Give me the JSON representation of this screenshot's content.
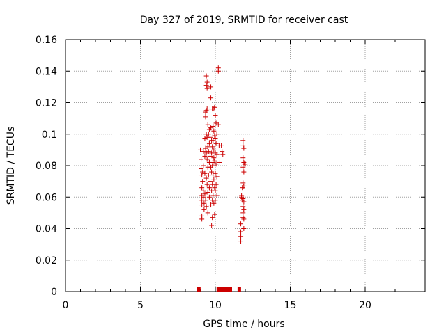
{
  "chart_data": {
    "type": "scatter",
    "title": "Day 327 of 2019, SRMTID for receiver cast",
    "xlabel": "GPS time / hours",
    "ylabel": "SRMTID / TECUs",
    "xlim": [
      0,
      24
    ],
    "ylim": [
      0,
      0.16
    ],
    "xticks": [
      "0",
      "5",
      "10",
      "15",
      "20"
    ],
    "yticks": [
      "0",
      "0.02",
      "0.04",
      "0.06",
      "0.08",
      "0.1",
      "0.12",
      "0.14",
      "0.16"
    ],
    "grid": true,
    "marker_color": "#cc0000",
    "series": [
      {
        "marker": "plus",
        "points": [
          [
            9.0,
            0.09
          ],
          [
            9.05,
            0.084
          ],
          [
            9.05,
            0.078
          ],
          [
            9.1,
            0.074
          ],
          [
            9.1,
            0.066
          ],
          [
            9.1,
            0.061
          ],
          [
            9.1,
            0.058
          ],
          [
            9.1,
            0.055
          ],
          [
            9.1,
            0.048
          ],
          [
            9.1,
            0.046
          ],
          [
            9.15,
            0.076
          ],
          [
            9.15,
            0.07
          ],
          [
            9.2,
            0.089
          ],
          [
            9.2,
            0.08
          ],
          [
            9.2,
            0.064
          ],
          [
            9.2,
            0.06
          ],
          [
            9.25,
            0.056
          ],
          [
            9.25,
            0.052
          ],
          [
            9.3,
            0.097
          ],
          [
            9.3,
            0.086
          ],
          [
            9.3,
            0.075
          ],
          [
            9.3,
            0.062
          ],
          [
            9.35,
            0.114
          ],
          [
            9.35,
            0.111
          ],
          [
            9.35,
            0.091
          ],
          [
            9.35,
            0.058
          ],
          [
            9.4,
            0.137
          ],
          [
            9.4,
            0.131
          ],
          [
            9.4,
            0.115
          ],
          [
            9.4,
            0.1
          ],
          [
            9.4,
            0.088
          ],
          [
            9.4,
            0.072
          ],
          [
            9.4,
            0.054
          ],
          [
            9.45,
            0.133
          ],
          [
            9.45,
            0.129
          ],
          [
            9.45,
            0.116
          ],
          [
            9.45,
            0.098
          ],
          [
            9.45,
            0.084
          ],
          [
            9.45,
            0.068
          ],
          [
            9.5,
            0.106
          ],
          [
            9.5,
            0.092
          ],
          [
            9.5,
            0.079
          ],
          [
            9.5,
            0.063
          ],
          [
            9.5,
            0.05
          ],
          [
            9.55,
            0.1
          ],
          [
            9.55,
            0.089
          ],
          [
            9.55,
            0.074
          ],
          [
            9.6,
            0.103
          ],
          [
            9.6,
            0.094
          ],
          [
            9.6,
            0.082
          ],
          [
            9.6,
            0.066
          ],
          [
            9.6,
            0.06
          ],
          [
            9.65,
            0.116
          ],
          [
            9.65,
            0.098
          ],
          [
            9.65,
            0.086
          ],
          [
            9.65,
            0.07
          ],
          [
            9.7,
            0.13
          ],
          [
            9.7,
            0.123
          ],
          [
            9.7,
            0.104
          ],
          [
            9.7,
            0.079
          ],
          [
            9.7,
            0.055
          ],
          [
            9.75,
            0.096
          ],
          [
            9.75,
            0.088
          ],
          [
            9.75,
            0.076
          ],
          [
            9.75,
            0.064
          ],
          [
            9.75,
            0.042
          ],
          [
            9.8,
            0.116
          ],
          [
            9.8,
            0.092
          ],
          [
            9.8,
            0.08
          ],
          [
            9.8,
            0.068
          ],
          [
            9.8,
            0.058
          ],
          [
            9.8,
            0.047
          ],
          [
            9.85,
            0.105
          ],
          [
            9.85,
            0.096
          ],
          [
            9.85,
            0.082
          ],
          [
            9.85,
            0.074
          ],
          [
            9.85,
            0.061
          ],
          [
            9.9,
            0.116
          ],
          [
            9.9,
            0.102
          ],
          [
            9.9,
            0.09
          ],
          [
            9.9,
            0.085
          ],
          [
            9.9,
            0.071
          ],
          [
            9.9,
            0.056
          ],
          [
            9.95,
            0.117
          ],
          [
            9.95,
            0.099
          ],
          [
            9.95,
            0.083
          ],
          [
            9.95,
            0.066
          ],
          [
            9.95,
            0.049
          ],
          [
            10.0,
            0.112
          ],
          [
            10.0,
            0.097
          ],
          [
            10.0,
            0.088
          ],
          [
            10.0,
            0.075
          ],
          [
            10.0,
            0.064
          ],
          [
            10.0,
            0.058
          ],
          [
            10.05,
            0.107
          ],
          [
            10.05,
            0.094
          ],
          [
            10.05,
            0.081
          ],
          [
            10.05,
            0.068
          ],
          [
            10.1,
            0.1
          ],
          [
            10.1,
            0.087
          ],
          [
            10.1,
            0.073
          ],
          [
            10.1,
            0.061
          ],
          [
            10.2,
            0.142
          ],
          [
            10.2,
            0.14
          ],
          [
            10.2,
            0.106
          ],
          [
            10.25,
            0.093
          ],
          [
            10.3,
            0.082
          ],
          [
            10.4,
            0.093
          ],
          [
            10.45,
            0.089
          ],
          [
            10.5,
            0.087
          ],
          [
            11.7,
            0.043
          ],
          [
            11.7,
            0.038
          ],
          [
            11.7,
            0.035
          ],
          [
            11.7,
            0.032
          ],
          [
            11.75,
            0.061
          ],
          [
            11.75,
            0.06
          ],
          [
            11.8,
            0.066
          ],
          [
            11.8,
            0.058
          ],
          [
            11.85,
            0.096
          ],
          [
            11.85,
            0.093
          ],
          [
            11.85,
            0.085
          ],
          [
            11.85,
            0.079
          ],
          [
            11.85,
            0.069
          ],
          [
            11.85,
            0.059
          ],
          [
            11.85,
            0.054
          ],
          [
            11.85,
            0.05
          ],
          [
            11.85,
            0.047
          ],
          [
            11.9,
            0.091
          ],
          [
            11.9,
            0.082
          ],
          [
            11.9,
            0.076
          ],
          [
            11.9,
            0.067
          ],
          [
            11.9,
            0.057
          ],
          [
            11.9,
            0.052
          ],
          [
            11.9,
            0.046
          ],
          [
            11.9,
            0.04
          ],
          [
            11.95,
            0.081
          ],
          [
            12.0,
            0.081
          ]
        ]
      },
      {
        "marker": "bar",
        "points": [
          [
            8.9,
            0
          ],
          [
            10.2,
            0
          ],
          [
            10.3,
            0
          ],
          [
            10.4,
            0
          ],
          [
            10.5,
            0
          ],
          [
            10.6,
            0
          ],
          [
            10.7,
            0
          ],
          [
            10.8,
            0
          ],
          [
            10.9,
            0
          ],
          [
            11.0,
            0
          ],
          [
            11.6,
            0
          ]
        ]
      }
    ]
  }
}
